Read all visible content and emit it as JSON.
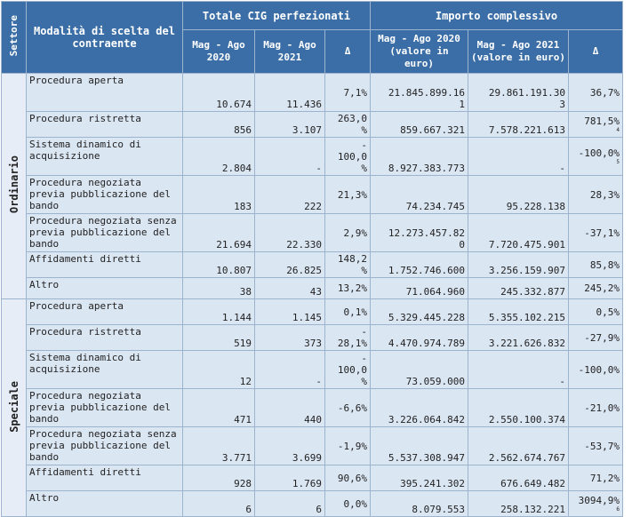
{
  "header": {
    "settore": "Settore",
    "modalita": "Modalità di scelta del contraente",
    "totale_cig": "Totale CIG perfezionati",
    "importo": "Importo complessivo",
    "mag_ago_2020": "Mag - Ago 2020",
    "mag_ago_2021": "Mag - Ago 2021",
    "delta": "Δ",
    "mag_ago_2020_euro": "Mag - Ago 2020 (valore in euro)",
    "mag_ago_2021_euro": "Mag - Ago 2021 (valore in euro)"
  },
  "sectors": [
    {
      "name": "Ordinario",
      "rows": [
        {
          "modalita": "Procedura aperta",
          "cig_2020": "10.674",
          "cig_2021": "11.436",
          "cig_delta": "7,1%",
          "imp_2020": "21.845.899.16\n1",
          "imp_2021": "29.861.191.30\n3",
          "imp_delta": "36,7%",
          "imp_delta_note": ""
        },
        {
          "modalita": "Procedura ristretta",
          "cig_2020": "856",
          "cig_2021": "3.107",
          "cig_delta": "263,0\n%",
          "imp_2020": "859.667.321",
          "imp_2021": "7.578.221.613",
          "imp_delta": "781,5%",
          "imp_delta_note": "4"
        },
        {
          "modalita": "Sistema dinamico di acquisizione",
          "cig_2020": "2.804",
          "cig_2021": "-",
          "cig_delta": "-\n100,0\n%",
          "imp_2020": "8.927.383.773",
          "imp_2021": "-",
          "imp_delta": "-100,0%",
          "imp_delta_note": "5"
        },
        {
          "modalita": "Procedura negoziata previa pubblicazione del bando",
          "cig_2020": "183",
          "cig_2021": "222",
          "cig_delta": "21,3%",
          "imp_2020": "74.234.745",
          "imp_2021": "95.228.138",
          "imp_delta": "28,3%",
          "imp_delta_note": ""
        },
        {
          "modalita": "Procedura negoziata senza previa pubblicazione del bando",
          "cig_2020": "21.694",
          "cig_2021": "22.330",
          "cig_delta": "2,9%",
          "imp_2020": "12.273.457.82\n0",
          "imp_2021": "7.720.475.901",
          "imp_delta": "-37,1%",
          "imp_delta_note": ""
        },
        {
          "modalita": "Affidamenti diretti",
          "cig_2020": "10.807",
          "cig_2021": "26.825",
          "cig_delta": "148,2\n%",
          "imp_2020": "1.752.746.600",
          "imp_2021": "3.256.159.907",
          "imp_delta": "85,8%",
          "imp_delta_note": ""
        },
        {
          "modalita": "Altro",
          "cig_2020": "38",
          "cig_2021": "43",
          "cig_delta": "13,2%",
          "imp_2020": "71.064.960",
          "imp_2021": "245.332.877",
          "imp_delta": "245,2%",
          "imp_delta_note": ""
        }
      ]
    },
    {
      "name": "Speciale",
      "rows": [
        {
          "modalita": "Procedura aperta",
          "cig_2020": "1.144",
          "cig_2021": "1.145",
          "cig_delta": "0,1%",
          "imp_2020": "5.329.445.228",
          "imp_2021": "5.355.102.215",
          "imp_delta": "0,5%",
          "imp_delta_note": ""
        },
        {
          "modalita": "Procedura ristretta",
          "cig_2020": "519",
          "cig_2021": "373",
          "cig_delta": "-\n28,1%",
          "imp_2020": "4.470.974.789",
          "imp_2021": "3.221.626.832",
          "imp_delta": "-27,9%",
          "imp_delta_note": ""
        },
        {
          "modalita": "Sistema dinamico di acquisizione",
          "cig_2020": "12",
          "cig_2021": "-",
          "cig_delta": "-\n100,0\n%",
          "imp_2020": "73.059.000",
          "imp_2021": "-",
          "imp_delta": "-100,0%",
          "imp_delta_note": ""
        },
        {
          "modalita": "Procedura negoziata previa pubblicazione del bando",
          "cig_2020": "471",
          "cig_2021": "440",
          "cig_delta": "-6,6%",
          "imp_2020": "3.226.064.842",
          "imp_2021": "2.550.100.374",
          "imp_delta": "-21,0%",
          "imp_delta_note": ""
        },
        {
          "modalita": "Procedura negoziata senza previa pubblicazione del bando",
          "cig_2020": "3.771",
          "cig_2021": "3.699",
          "cig_delta": "-1,9%",
          "imp_2020": "5.537.308.947",
          "imp_2021": "2.562.674.767",
          "imp_delta": "-53,7%",
          "imp_delta_note": ""
        },
        {
          "modalita": "Affidamenti diretti",
          "cig_2020": "928",
          "cig_2021": "1.769",
          "cig_delta": "90,6%",
          "imp_2020": "395.241.302",
          "imp_2021": "676.649.482",
          "imp_delta": "71,2%",
          "imp_delta_note": ""
        },
        {
          "modalita": "Altro",
          "cig_2020": "6",
          "cig_2021": "6",
          "cig_delta": "0,0%",
          "imp_2020": "8.079.553",
          "imp_2021": "258.132.221",
          "imp_delta": "3094,9%",
          "imp_delta_note": "6"
        }
      ]
    }
  ]
}
